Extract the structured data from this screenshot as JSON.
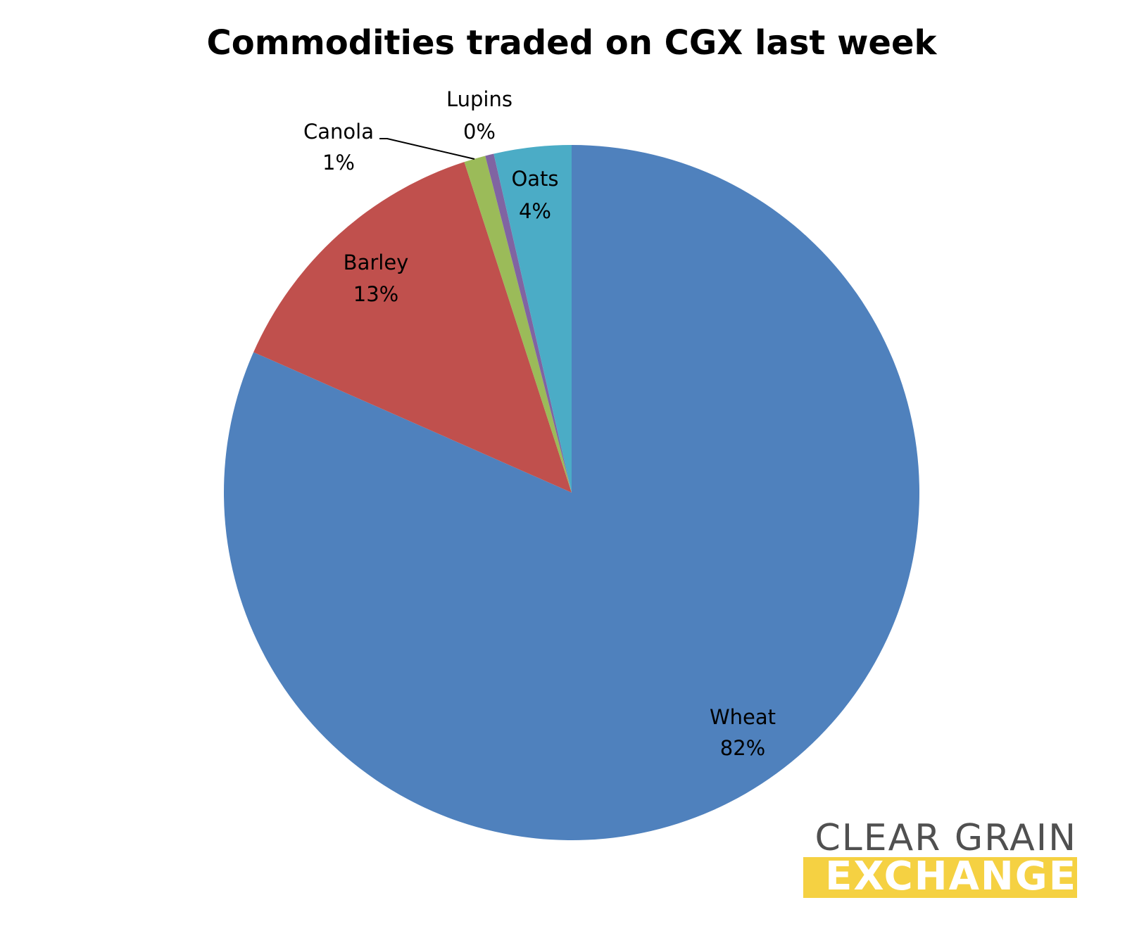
{
  "chart_data": {
    "type": "pie",
    "title": "Commodities traded on CGX last week",
    "categories": [
      "Wheat",
      "Barley",
      "Canola",
      "Lupins",
      "Oats"
    ],
    "values": [
      81.7,
      13.4,
      1.0,
      0.4,
      3.6
    ],
    "value_labels": [
      "82%",
      "13%",
      "1%",
      "0%",
      "4%"
    ],
    "colors": [
      "#4f81bd",
      "#c0504d",
      "#9bbb59",
      "#8064a2",
      "#4bacc6"
    ]
  },
  "logo": {
    "line1": "CLEAR GRAIN",
    "line2": "EXCHANGE"
  }
}
